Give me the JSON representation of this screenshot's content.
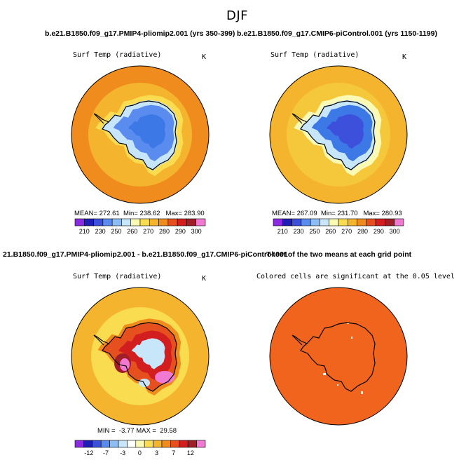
{
  "figure": {
    "title": "DJF"
  },
  "chart_data": [
    {
      "type": "heatmap",
      "projection": "south polar stereographic",
      "title": "b.e21.B1850.f09_g17.PMIP4-pliomip2.001 (yrs 350-399)",
      "variable": "Surf Temp (radiative)",
      "units": "K",
      "stats": {
        "mean_label": "MEAN=",
        "mean": "272.61",
        "min_label": "Min=",
        "min": "238.62",
        "max_label": "Max=",
        "max": "283.90"
      },
      "colorbar": {
        "tick_labels": [
          "210",
          "230",
          "250",
          "260",
          "270",
          "280",
          "290",
          "300"
        ],
        "colors": [
          "#8a2be2",
          "#1e1eb4",
          "#3c50dc",
          "#5a8cf0",
          "#8cbef5",
          "#c8e6fa",
          "#fafab4",
          "#fadc50",
          "#f5b42d",
          "#f08c1e",
          "#e6501e",
          "#d21e1e",
          "#a01e28",
          "#f07ad2"
        ]
      },
      "field_colors": {
        "ocean": "#f5b42d",
        "ocean_warm": "#f08c1e",
        "coast": "#fadc50",
        "ice_edge": "#c8e6fa",
        "interior": "#5a8cf0",
        "interior_cold": "#3c78e6"
      }
    },
    {
      "type": "heatmap",
      "projection": "south polar stereographic",
      "title": "b.e21.B1850.f09_g17.CMIP6-piControl.001 (yrs 1150-1199)",
      "variable": "Surf Temp (radiative)",
      "units": "K",
      "stats": {
        "mean_label": "MEAN=",
        "mean": "267.09",
        "min_label": "Min=",
        "min": "231.70",
        "max_label": "Max=",
        "max": "280.93"
      },
      "colorbar": {
        "tick_labels": [
          "210",
          "230",
          "250",
          "260",
          "270",
          "280",
          "290",
          "300"
        ],
        "colors": [
          "#8a2be2",
          "#1e1eb4",
          "#3c50dc",
          "#5a8cf0",
          "#8cbef5",
          "#c8e6fa",
          "#fafab4",
          "#fadc50",
          "#f5b42d",
          "#f08c1e",
          "#e6501e",
          "#d21e1e",
          "#a01e28",
          "#f07ad2"
        ]
      },
      "field_colors": {
        "ocean": "#f5c83c",
        "ocean_warm": "#f5b42d",
        "coast": "#fafab4",
        "ice_edge": "#c8e6fa",
        "interior": "#3c78e6",
        "interior_cold": "#3c50dc"
      }
    },
    {
      "type": "heatmap",
      "projection": "south polar stereographic",
      "title": "21.B1850.f09_g17.PMIP4-pliomip2.001 - b.e21.B1850.f09_g17.CMIP6-piControl.001",
      "variable": "Surf Temp (radiative)",
      "units": "K",
      "stats": {
        "min_label": "MIN =",
        "min": "-3.77",
        "max_label": "MAX =",
        "max": "29.58"
      },
      "colorbar": {
        "tick_labels": [
          "-12",
          "-7",
          "-3",
          "0",
          "3",
          "7",
          "12"
        ],
        "colors": [
          "#8a2be2",
          "#1e1eb4",
          "#3c50dc",
          "#5a8cf0",
          "#8cbef5",
          "#c8e6fa",
          "#ffffff",
          "#fafab4",
          "#fadc50",
          "#f5b42d",
          "#f08c1e",
          "#e6501e",
          "#d21e1e",
          "#a01e28",
          "#f07ad2"
        ]
      },
      "field_colors": {
        "ocean": "#f5b42d",
        "ocean_warm": "#fadc50",
        "coast": "#f08c1e",
        "land": "#e6501e",
        "land_warm": "#d21e1e",
        "land_hot": "#a01e28",
        "peak": "#f07ad2",
        "cool": "#c8e6fa"
      }
    },
    {
      "type": "heatmap",
      "projection": "south polar stereographic",
      "title": "T-test of the two means at each grid point",
      "subtitle": "Colored cells are significant at the 0.05 level",
      "field_colors": {
        "significant": "#f0641e",
        "not_significant": "#ffffff"
      }
    }
  ]
}
